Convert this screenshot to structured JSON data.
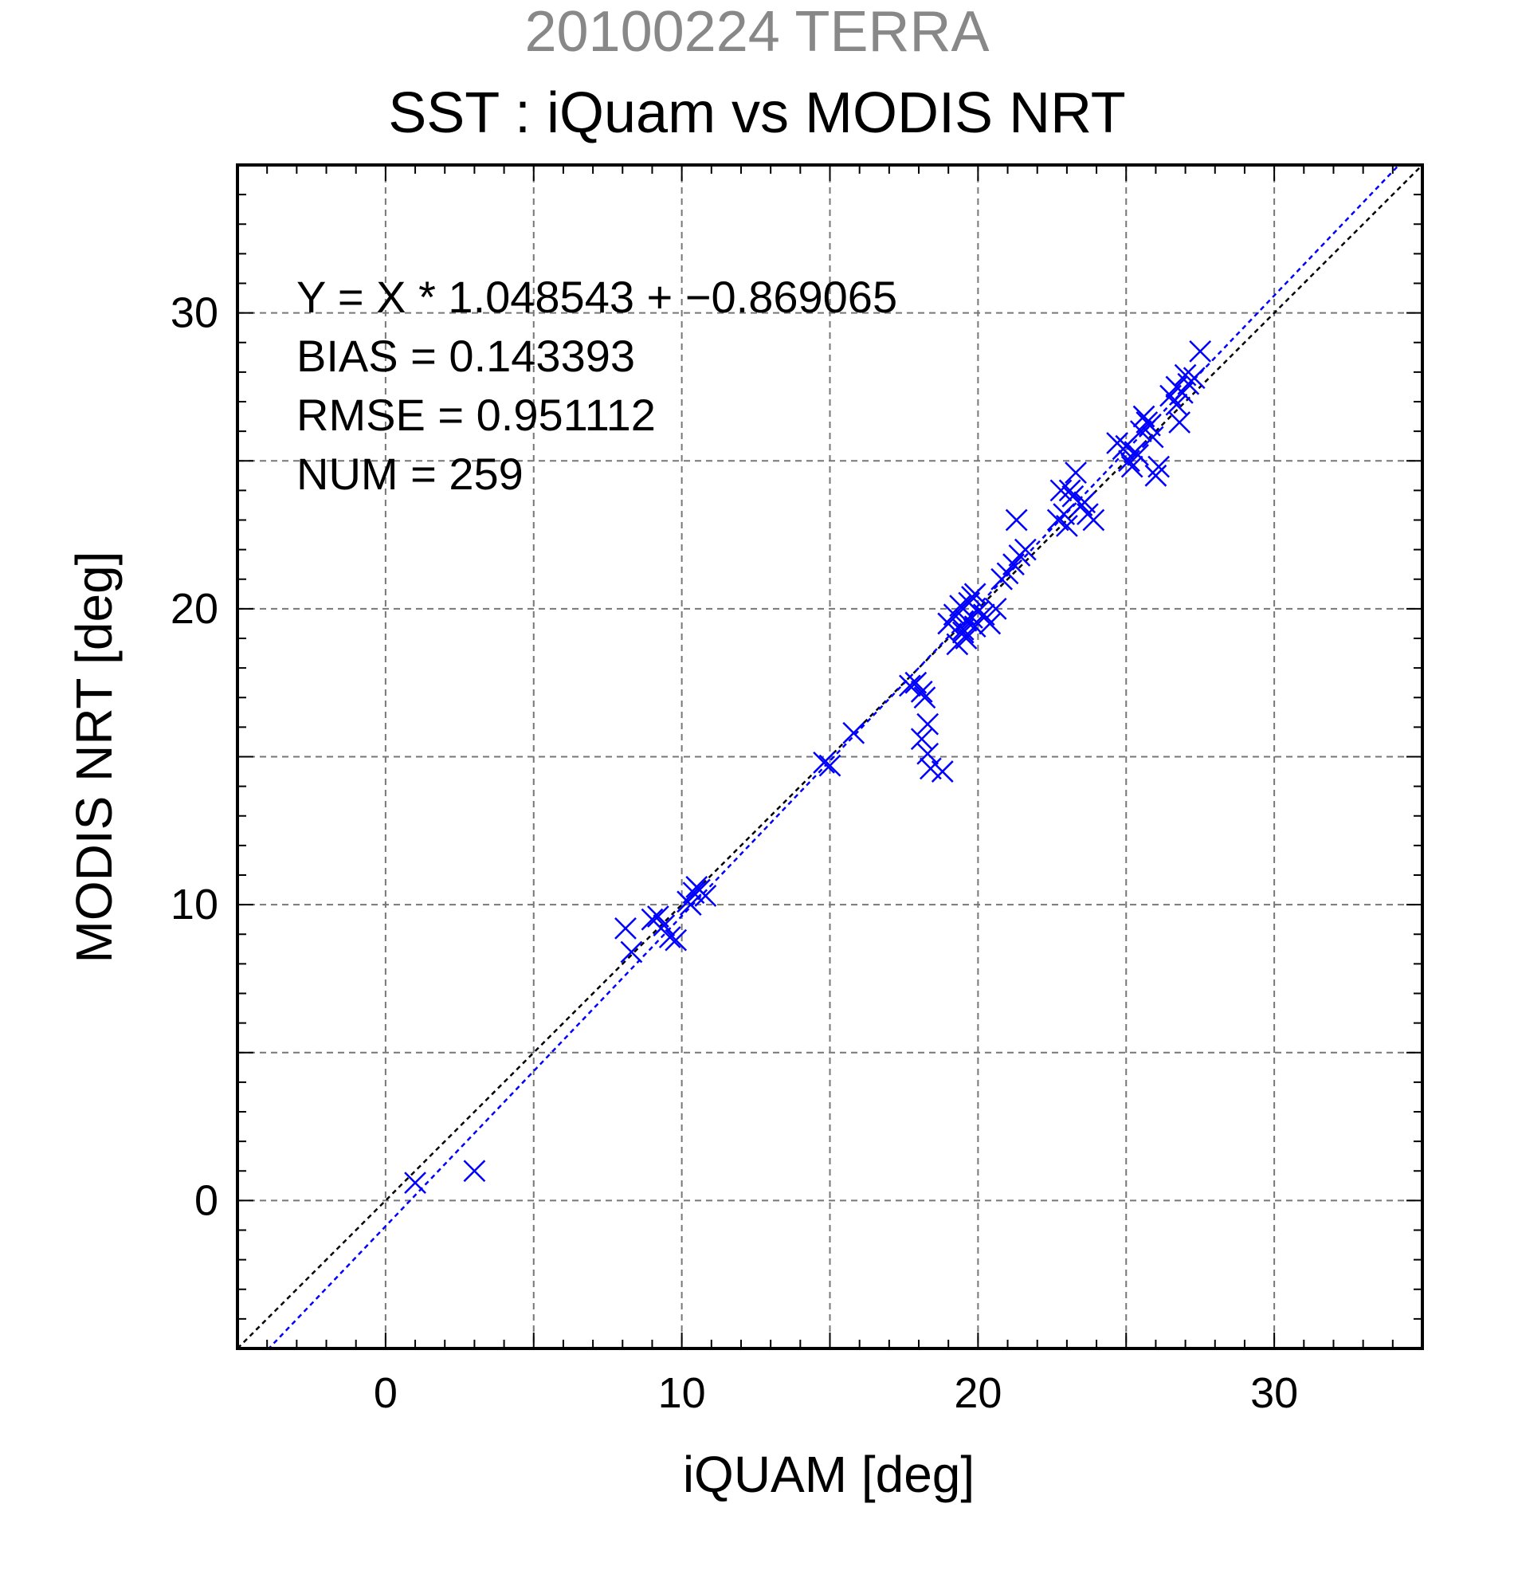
{
  "page": {
    "title": "20100224 TERRA"
  },
  "chart_data": {
    "type": "scatter",
    "title": "SST : iQuam vs MODIS NRT",
    "xlabel": "iQUAM [deg]",
    "ylabel": "MODIS NRT [deg]",
    "xlim": [
      -5,
      35
    ],
    "ylim": [
      -5,
      35
    ],
    "xticks": [
      0,
      10,
      20,
      30
    ],
    "yticks": [
      0,
      10,
      20,
      30
    ],
    "grid": true,
    "marker": "x",
    "colors": {
      "points": "#0000ff",
      "fit_line": "#0000ff",
      "identity_line": "#000000",
      "grid": "#777777"
    },
    "stats": [
      "Y = X * 1.048543 + −0.869065",
      "BIAS = 0.143393",
      "RMSE = 0.951112",
      "NUM = 259"
    ],
    "fit": {
      "slope": 1.048543,
      "intercept": -0.869065
    },
    "series": [
      {
        "x": [
          1.0,
          3.0,
          8.1,
          8.3,
          9.0,
          9.2,
          9.4,
          9.6,
          9.8,
          10.2,
          10.4,
          10.6,
          10.8,
          10.5,
          10.3,
          14.8,
          15.0,
          15.8,
          17.7,
          17.9,
          18.1,
          18.2,
          18.3,
          18.1,
          18.3,
          18.8,
          18.4,
          19.0,
          19.2,
          19.4,
          19.6,
          19.8,
          20.0,
          19.5,
          19.7,
          19.9,
          19.3,
          19.6,
          19.8,
          20.2,
          20.4,
          20.6,
          19.5,
          19.9,
          20.8,
          21.0,
          21.2,
          21.4,
          21.6,
          21.3,
          22.7,
          22.9,
          23.1,
          23.3,
          23.5,
          23.7,
          23.9,
          22.8,
          23.0,
          23.2,
          23.6,
          24.7,
          24.9,
          25.1,
          25.3,
          25.5,
          25.7,
          25.9,
          25.2,
          25.4,
          25.6,
          25.8,
          26.1,
          25.0,
          26.0,
          26.5,
          26.7,
          26.9,
          27.1,
          27.3,
          26.8,
          27.0,
          27.5,
          26.7
        ],
        "y": [
          0.6,
          1.0,
          9.2,
          8.4,
          9.5,
          9.6,
          9.3,
          8.9,
          8.8,
          10.1,
          10.4,
          10.5,
          10.3,
          10.6,
          10.0,
          14.8,
          14.7,
          15.8,
          17.4,
          17.5,
          17.2,
          17.0,
          16.1,
          15.6,
          15.1,
          14.5,
          14.6,
          19.5,
          19.8,
          20.1,
          19.6,
          19.7,
          19.9,
          19.3,
          20.2,
          19.4,
          18.8,
          19.0,
          20.4,
          19.8,
          19.5,
          20.0,
          19.2,
          20.5,
          21.0,
          21.2,
          21.5,
          21.8,
          22.0,
          23.0,
          23.0,
          23.2,
          24.0,
          24.6,
          23.5,
          23.2,
          23.0,
          24.0,
          22.8,
          23.8,
          23.6,
          25.6,
          25.4,
          25.0,
          25.3,
          26.0,
          26.3,
          25.8,
          24.8,
          25.2,
          26.5,
          26.2,
          24.8,
          25.5,
          24.5,
          27.2,
          27.5,
          27.3,
          27.6,
          27.8,
          26.3,
          27.9,
          28.7,
          26.9
        ]
      }
    ]
  }
}
